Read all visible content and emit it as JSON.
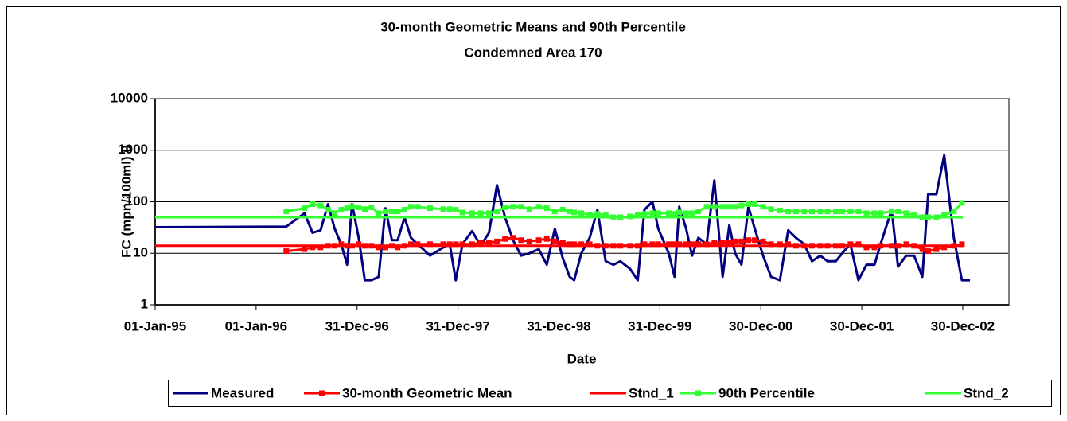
{
  "chart_data": {
    "type": "line",
    "title": "30-month Geometric Means and 90th Percentile",
    "subtitle": "Condemned Area 170",
    "x_label": "Date",
    "y_label": "FC (mpn/100ml) 0",
    "log_y": true,
    "grid": true,
    "legend": "bottom",
    "xlim": [
      "1995-01-01",
      "2003-06-15"
    ],
    "xticks": [
      {
        "value": "1995-01-01",
        "label": "01-Jan-95"
      },
      {
        "value": "1996-01-01",
        "label": "01-Jan-96"
      },
      {
        "value": "1996-12-31",
        "label": "31-Dec-96"
      },
      {
        "value": "1997-12-31",
        "label": "31-Dec-97"
      },
      {
        "value": "1998-12-31",
        "label": "31-Dec-98"
      },
      {
        "value": "1999-12-31",
        "label": "31-Dec-99"
      },
      {
        "value": "2000-12-30",
        "label": "30-Dec-00"
      },
      {
        "value": "2001-12-30",
        "label": "30-Dec-01"
      },
      {
        "value": "2002-12-30",
        "label": "30-Dec-02"
      }
    ],
    "ylim": [
      1,
      10000
    ],
    "yticks": [
      1,
      10,
      100,
      1000,
      10000
    ],
    "x": [
      "1995-01-01",
      "1996-04-19",
      "1996-06-24",
      "1996-07-23",
      "1996-08-21",
      "1996-09-17",
      "1996-10-11",
      "1996-11-04",
      "1996-11-25",
      "1996-12-13",
      "1997-01-06",
      "1997-01-28",
      "1997-02-21",
      "1997-03-19",
      "1997-04-13",
      "1997-05-06",
      "1997-05-27",
      "1997-06-21",
      "1997-07-14",
      "1997-08-07",
      "1997-09-21",
      "1997-11-08",
      "1997-12-01",
      "1997-12-23",
      "1998-01-16",
      "1998-02-20",
      "1998-03-23",
      "1998-04-22",
      "1998-05-21",
      "1998-06-19",
      "1998-07-18",
      "1998-08-16",
      "1998-09-15",
      "1998-10-19",
      "1998-11-17",
      "1998-12-16",
      "1999-01-14",
      "1999-02-08",
      "1999-02-24",
      "1999-03-22",
      "1999-04-21",
      "1999-05-19",
      "1999-06-18",
      "1999-07-16",
      "1999-08-10",
      "1999-09-14",
      "1999-10-12",
      "1999-11-05",
      "1999-12-04",
      "1999-12-25",
      "2000-02-01",
      "2000-02-22",
      "2000-03-10",
      "2000-04-04",
      "2000-04-25",
      "2000-05-18",
      "2000-06-17",
      "2000-07-15",
      "2000-08-14",
      "2000-09-07",
      "2000-09-28",
      "2000-10-21",
      "2000-11-15",
      "2000-12-08",
      "2001-01-07",
      "2001-02-05",
      "2001-03-09",
      "2001-04-08",
      "2001-05-06",
      "2001-06-05",
      "2001-07-03",
      "2001-08-02",
      "2001-08-28",
      "2001-09-27",
      "2001-10-20",
      "2001-11-19",
      "2001-12-18",
      "2002-01-16",
      "2002-02-14",
      "2002-03-08",
      "2002-04-17",
      "2002-05-10",
      "2002-06-09",
      "2002-07-07",
      "2002-08-06",
      "2002-08-27",
      "2002-09-26",
      "2002-10-24",
      "2002-11-28",
      "2002-12-27",
      "2003-01-25"
    ],
    "series": [
      {
        "name": "Measured",
        "color": "#000080",
        "markers": false,
        "values": [
          32,
          33,
          60,
          25,
          28,
          90,
          30,
          15,
          6,
          90,
          20,
          3,
          3,
          3.5,
          75,
          18,
          18,
          50,
          20,
          15,
          9,
          13,
          15,
          3,
          15,
          27,
          14,
          25,
          210,
          50,
          18,
          9,
          10,
          12,
          6,
          30,
          8,
          3.5,
          3,
          10,
          20,
          70,
          7,
          6,
          7,
          5,
          3,
          70,
          100,
          30,
          10,
          3.5,
          80,
          30,
          9,
          20,
          15,
          260,
          3.5,
          35,
          10,
          6,
          80,
          30,
          9,
          3.5,
          3,
          28,
          20,
          15,
          7,
          9,
          7,
          7,
          10,
          15,
          3,
          6,
          6,
          15,
          70,
          5.5,
          9,
          9,
          3.5,
          140,
          140,
          800,
          20,
          3,
          3
        ]
      },
      {
        "name": "30-month Geometric Mean",
        "color": "#ff0000",
        "markers": true,
        "values": [
          null,
          11,
          12,
          13,
          13,
          14,
          14,
          15,
          14,
          14,
          15,
          14,
          14,
          13,
          13,
          14,
          13,
          14,
          15,
          15,
          15,
          15,
          15,
          15,
          15,
          15,
          16,
          16,
          17,
          19,
          20,
          18,
          17,
          18,
          19,
          17,
          16,
          15,
          15,
          15,
          15,
          14,
          14,
          14,
          14,
          14,
          14,
          15,
          15,
          15,
          15,
          15,
          15,
          15,
          15,
          15,
          15,
          16,
          16,
          16,
          17,
          17,
          18,
          18,
          17,
          15,
          15,
          15,
          14,
          14,
          14,
          14,
          14,
          14,
          14,
          15,
          15,
          13,
          13,
          14,
          14,
          14,
          15,
          14,
          12,
          11,
          12,
          13,
          14,
          15,
          null
        ]
      },
      {
        "name": "Stnd_1",
        "color": "#ff0000",
        "markers": false,
        "x": [
          "1995-01-01",
          "2002-12-30"
        ],
        "values": [
          14,
          14
        ]
      },
      {
        "name": "90th Percentile",
        "color": "#33ff33",
        "markers": true,
        "values": [
          null,
          65,
          75,
          90,
          85,
          70,
          60,
          70,
          75,
          80,
          78,
          72,
          78,
          60,
          65,
          65,
          65,
          70,
          80,
          80,
          75,
          72,
          72,
          70,
          62,
          60,
          60,
          60,
          65,
          78,
          80,
          80,
          72,
          80,
          75,
          65,
          70,
          65,
          62,
          60,
          55,
          58,
          55,
          50,
          50,
          52,
          55,
          58,
          60,
          60,
          60,
          58,
          62,
          60,
          60,
          65,
          80,
          80,
          80,
          80,
          80,
          85,
          90,
          90,
          80,
          72,
          68,
          65,
          65,
          65,
          65,
          65,
          65,
          65,
          65,
          65,
          65,
          60,
          60,
          60,
          65,
          65,
          60,
          55,
          50,
          50,
          50,
          55,
          65,
          95,
          null
        ]
      },
      {
        "name": "Stnd_2",
        "color": "#33ff33",
        "markers": false,
        "x": [
          "1995-01-01",
          "2002-12-30"
        ],
        "values": [
          50,
          50
        ]
      }
    ]
  }
}
